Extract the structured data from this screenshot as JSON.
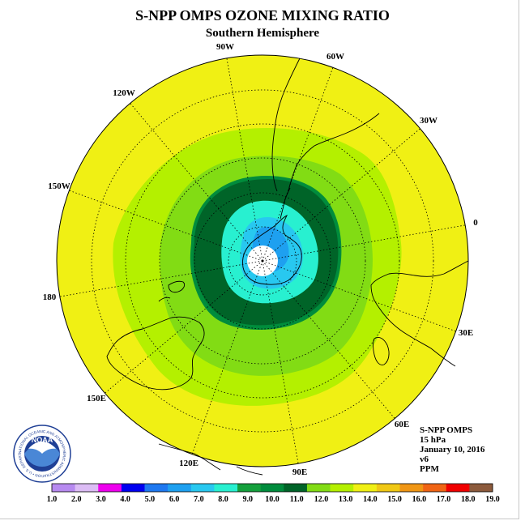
{
  "header": {
    "title": "S-NPP OMPS OZONE MIXING RATIO",
    "subtitle": "Southern Hemisphere"
  },
  "longitude_labels": [
    {
      "id": "90w",
      "text": "90W"
    },
    {
      "id": "60w",
      "text": "60W"
    },
    {
      "id": "30w",
      "text": "30W"
    },
    {
      "id": "0",
      "text": "0"
    },
    {
      "id": "30e",
      "text": "30E"
    },
    {
      "id": "60e",
      "text": "60E"
    },
    {
      "id": "90e",
      "text": "90E"
    },
    {
      "id": "120e",
      "text": "120E"
    },
    {
      "id": "150e",
      "text": "150E"
    },
    {
      "id": "180",
      "text": "180"
    },
    {
      "id": "150w",
      "text": "150W"
    },
    {
      "id": "120w",
      "text": "120W"
    }
  ],
  "info": {
    "instrument": "S-NPP OMPS",
    "level": "15 hPa",
    "date": "January 10, 2016",
    "version": "v6",
    "units": "PPM"
  },
  "logo": {
    "text": "NOAA",
    "ring_text": "NATIONAL OCEANIC AND ATMOSPHERIC ADMINISTRATION • U.S. DEPARTMENT OF COMMERCE"
  },
  "colorbar": {
    "labels": [
      "1.0",
      "2.0",
      "3.0",
      "4.0",
      "5.0",
      "6.0",
      "7.0",
      "8.0",
      "9.0",
      "10.0",
      "11.0",
      "12.0",
      "13.0",
      "14.0",
      "15.0",
      "16.0",
      "17.0",
      "18.0",
      "19.0"
    ],
    "colors": [
      "#b78af0",
      "#dcbcf5",
      "#ee00ee",
      "#0000f0",
      "#1e78f0",
      "#1ea0f0",
      "#28c8f0",
      "#28f0d0",
      "#14a03c",
      "#008c3c",
      "#006428",
      "#82dc14",
      "#b4f000",
      "#f0f014",
      "#f0c814",
      "#f09614",
      "#f06414",
      "#f00000",
      "#8c5a3c"
    ],
    "ticks_shown": 19
  },
  "map": {
    "background_fill": "#f0f014",
    "contours": [
      {
        "level": "13.0",
        "color": "#b4f000"
      },
      {
        "level": "12.0",
        "color": "#82dc14"
      },
      {
        "level": "11.0",
        "color": "#008c3c"
      },
      {
        "level": "10.0",
        "color": "#006428"
      },
      {
        "level": "9.0",
        "color": "#28f0d0"
      },
      {
        "level": "8.0",
        "color": "#28c8f0"
      },
      {
        "level": "7.0",
        "color": "#1ea0f0"
      }
    ],
    "pole_no_data_fill": "#ffffff"
  }
}
